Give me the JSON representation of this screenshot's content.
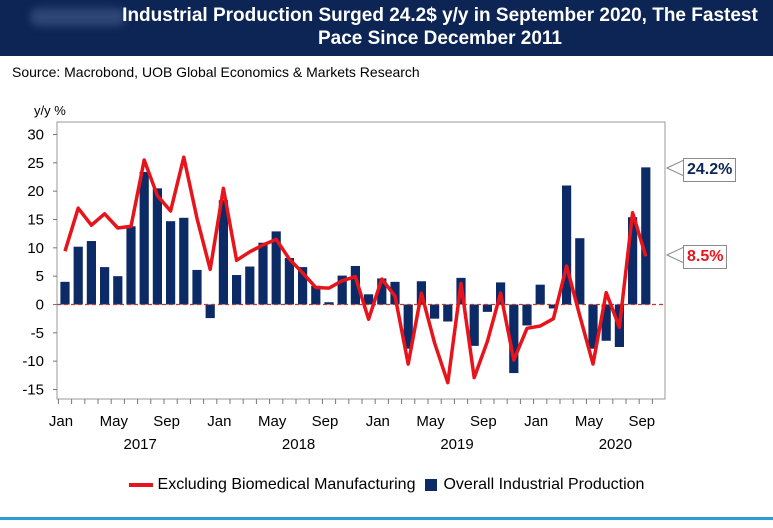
{
  "header": {
    "title": "Industrial Production Surged 24.2$ y/y in September 2020, The Fastest Pace Since December 2011"
  },
  "source": "Source: Macrobond, UOB Global Economics & Markets Research",
  "callouts": {
    "overall": "24.2%",
    "excluding": "8.5%"
  },
  "colors": {
    "header_bg": "#0c2555",
    "bar": "#0c2a66",
    "line": "#e8141b",
    "zero_line": "#c0392b",
    "accent_rule": "#2f9bd6"
  },
  "chart_data": {
    "type": "bar",
    "ylabel": "y/y %",
    "ylim": [
      -15,
      30
    ],
    "yticks": [
      30,
      25,
      20,
      15,
      10,
      5,
      0,
      -5,
      -10,
      -15
    ],
    "xticks": [
      {
        "month_index": 0,
        "label": "Jan"
      },
      {
        "month_index": 4,
        "label": "May"
      },
      {
        "month_index": 8,
        "label": "Sep"
      },
      {
        "month_index": 12,
        "label": "Jan"
      },
      {
        "month_index": 16,
        "label": "May"
      },
      {
        "month_index": 20,
        "label": "Sep"
      },
      {
        "month_index": 24,
        "label": "Jan"
      },
      {
        "month_index": 28,
        "label": "May"
      },
      {
        "month_index": 32,
        "label": "Sep"
      },
      {
        "month_index": 36,
        "label": "Jan"
      },
      {
        "month_index": 40,
        "label": "May"
      },
      {
        "month_index": 44,
        "label": "Sep"
      }
    ],
    "year_labels": [
      {
        "month_index": 6,
        "label": "2017"
      },
      {
        "month_index": 18,
        "label": "2018"
      },
      {
        "month_index": 30,
        "label": "2019"
      },
      {
        "month_index": 42,
        "label": "2020"
      }
    ],
    "categories": [
      "Jan 2017",
      "Feb 2017",
      "Mar 2017",
      "Apr 2017",
      "May 2017",
      "Jun 2017",
      "Jul 2017",
      "Aug 2017",
      "Sep 2017",
      "Oct 2017",
      "Nov 2017",
      "Dec 2017",
      "Jan 2018",
      "Feb 2018",
      "Mar 2018",
      "Apr 2018",
      "May 2018",
      "Jun 2018",
      "Jul 2018",
      "Aug 2018",
      "Sep 2018",
      "Oct 2018",
      "Nov 2018",
      "Dec 2018",
      "Jan 2019",
      "Feb 2019",
      "Mar 2019",
      "Apr 2019",
      "May 2019",
      "Jun 2019",
      "Jul 2019",
      "Aug 2019",
      "Sep 2019",
      "Oct 2019",
      "Nov 2019",
      "Dec 2019",
      "Jan 2020",
      "Feb 2020",
      "Mar 2020",
      "Apr 2020",
      "May 2020",
      "Jun 2020",
      "Jul 2020",
      "Aug 2020",
      "Sep 2020"
    ],
    "series": [
      {
        "name": "Overall Industrial Production",
        "kind": "bar",
        "values": [
          4.0,
          10.2,
          11.2,
          6.6,
          5.0,
          13.8,
          23.4,
          20.5,
          14.7,
          15.3,
          6.1,
          -2.4,
          18.4,
          5.2,
          6.7,
          10.9,
          12.9,
          8.2,
          6.6,
          3.3,
          0.4,
          5.1,
          6.8,
          1.8,
          4.6,
          4.0,
          -7.8,
          4.1,
          -2.5,
          -3.0,
          4.7,
          -7.3,
          -1.3,
          3.9,
          -12.1,
          -3.7,
          3.5,
          -0.7,
          21.0,
          11.7,
          -7.8,
          -6.4,
          -7.5,
          15.4,
          24.2
        ]
      },
      {
        "name": "Excluding Biomedical Manufacturing",
        "kind": "line",
        "values": [
          9.4,
          17.0,
          14.0,
          16.0,
          13.5,
          13.8,
          25.5,
          19.2,
          16.5,
          26.0,
          15.2,
          6.2,
          20.5,
          7.8,
          9.3,
          10.5,
          11.5,
          8.0,
          5.6,
          3.0,
          2.9,
          4.2,
          4.9,
          -2.6,
          4.5,
          1.5,
          -10.5,
          2.0,
          -6.8,
          -13.8,
          3.7,
          -12.9,
          -6.5,
          2.0,
          -9.8,
          -4.2,
          -3.8,
          -2.5,
          6.8,
          -2.0,
          -10.5,
          2.1,
          -4.0,
          16.2,
          8.5
        ]
      }
    ],
    "legend_position": "bottom",
    "grid": false
  }
}
